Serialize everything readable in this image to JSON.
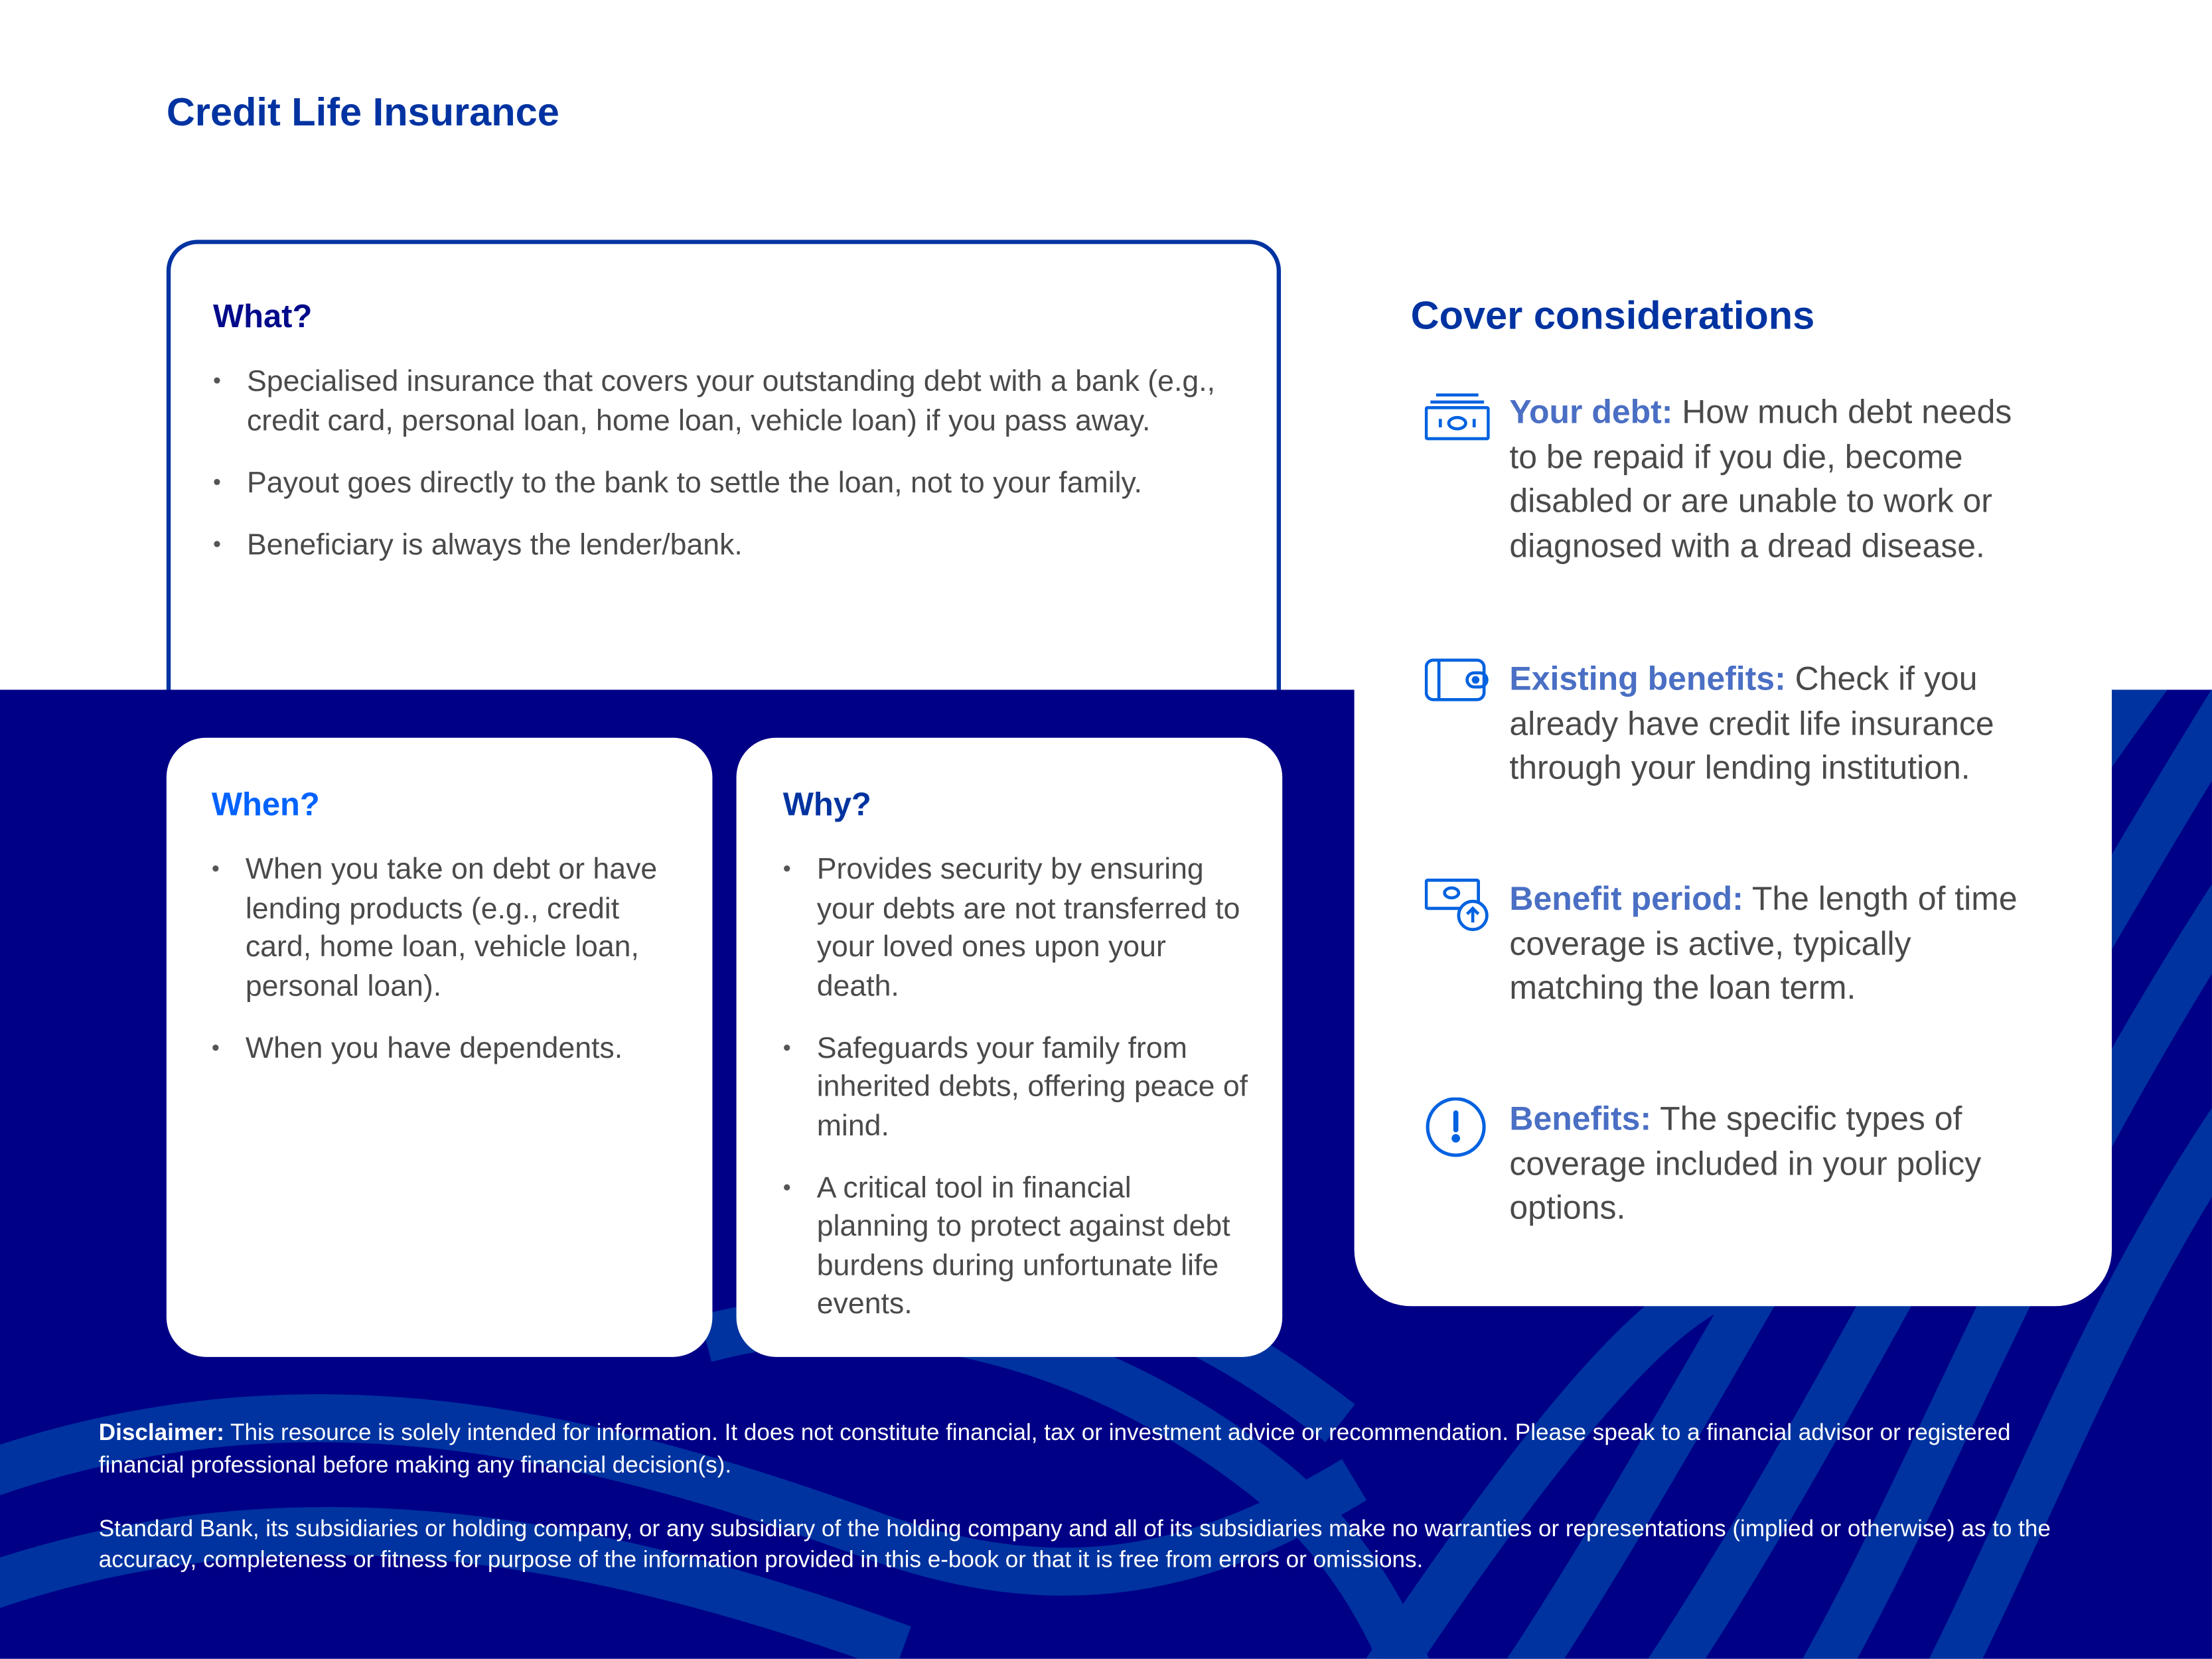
{
  "title": "Credit Life Insurance",
  "colors": {
    "brand": "#0033a1",
    "navy": "#000087",
    "stripe": "#0033a0",
    "label": "#4a6fc4",
    "when": "#0062ff"
  },
  "what": {
    "heading": "What?",
    "items": [
      "Specialised insurance that covers your outstanding debt with a bank (e.g., credit card, personal loan, home loan, vehicle loan) if you pass away.",
      "Payout goes directly to the bank to settle the loan, not to your family.",
      "Beneficiary is always the lender/bank."
    ]
  },
  "when": {
    "heading": "When?",
    "items": [
      "When you take on debt or have lending products (e.g., credit card, home loan, vehicle loan, personal loan).",
      "When you have dependents."
    ]
  },
  "why": {
    "heading": "Why?",
    "items": [
      "Provides security by ensuring your debts are not transferred to your loved ones upon your death.",
      "Safeguards your family from inherited debts, offering peace of mind.",
      "A critical tool in financial planning to protect against debt burdens during unfortunate life events."
    ]
  },
  "cover": {
    "heading": "Cover considerations",
    "items": [
      {
        "icon": "banknotes-icon",
        "label": "Your debt:",
        "text": " How much debt needs to be repaid if you die, become disabled or are unable to work or diagnosed with a dread disease."
      },
      {
        "icon": "wallet-icon",
        "label": "Existing benefits:",
        "text": " Check if you already have credit life insurance through your lending institution."
      },
      {
        "icon": "money-up-icon",
        "label": "Benefit period:",
        "text": " The length of time coverage is active, typically matching the loan term."
      },
      {
        "icon": "exclamation-circle-icon",
        "label": "Benefits:",
        "text": " The specific types of coverage included in your policy options."
      }
    ]
  },
  "disclaimer": {
    "label": "Disclaimer:",
    "text": " This resource is solely intended for information. It does not constitute financial, tax or investment advice or recommendation. Please speak to a financial advisor or registered financial professional before making any financial decision(s).",
    "text2": "Standard Bank, its subsidiaries or holding company, or any subsidiary of the holding company and all of its subsidiaries make no warranties or representations (implied or otherwise) as to the accuracy, completeness or fitness for purpose of the information provided in this e-book or that it is free from errors or omissions."
  }
}
